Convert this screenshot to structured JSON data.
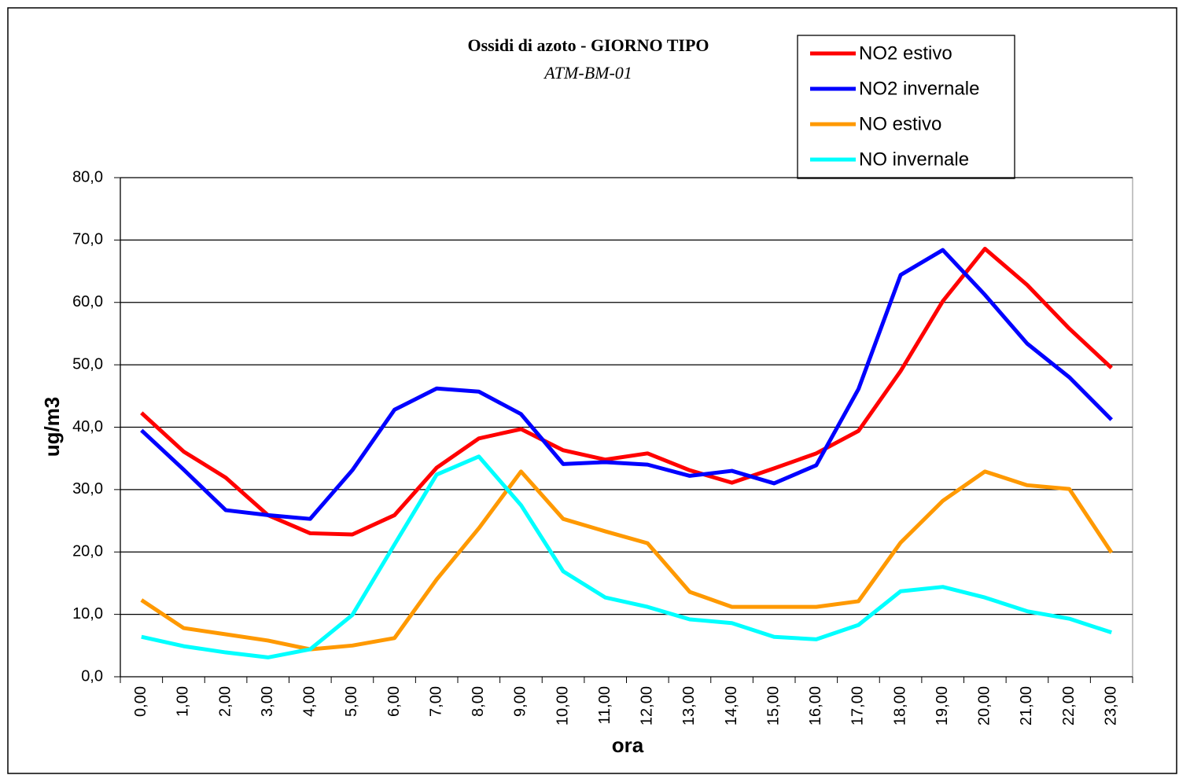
{
  "chart_data": {
    "type": "line",
    "title": "Ossidi di azoto - GIORNO TIPO",
    "subtitle": "ATM-BM-01",
    "x_label": "ora",
    "y_label": "ug/m3",
    "categories": [
      "0,00",
      "1,00",
      "2,00",
      "3,00",
      "4,00",
      "5,00",
      "6,00",
      "7,00",
      "8,00",
      "9,00",
      "10,00",
      "11,00",
      "12,00",
      "13,00",
      "14,00",
      "15,00",
      "16,00",
      "17,00",
      "18,00",
      "19,00",
      "20,00",
      "21,00",
      "22,00",
      "23,00"
    ],
    "series": [
      {
        "name": "NO2 estivo",
        "color": "#ff0000",
        "values": [
          42.3,
          36.1,
          31.9,
          25.9,
          23.0,
          22.8,
          25.9,
          33.5,
          38.2,
          39.7,
          36.3,
          34.8,
          35.8,
          33.1,
          31.1,
          33.4,
          35.8,
          39.4,
          49.0,
          60.2,
          68.6,
          62.8,
          55.8,
          49.5
        ]
      },
      {
        "name": "NO2 invernale",
        "color": "#0000ff",
        "values": [
          39.5,
          33.2,
          26.7,
          25.9,
          25.3,
          33.1,
          42.8,
          46.2,
          45.7,
          42.1,
          34.1,
          34.4,
          34.0,
          32.2,
          33.0,
          31.0,
          33.9,
          46.1,
          64.4,
          68.4,
          61.2,
          53.4,
          48.0,
          41.2
        ]
      },
      {
        "name": "NO estivo",
        "color": "#ff9900",
        "values": [
          12.3,
          7.8,
          6.8,
          5.8,
          4.4,
          5.0,
          6.2,
          15.6,
          23.8,
          32.9,
          25.3,
          23.3,
          21.4,
          13.6,
          11.2,
          11.2,
          11.2,
          12.1,
          21.5,
          28.2,
          32.9,
          30.7,
          30.1,
          19.9
        ]
      },
      {
        "name": "NO invernale",
        "color": "#00ffff",
        "values": [
          6.4,
          4.9,
          3.9,
          3.1,
          4.4,
          9.9,
          21.2,
          32.4,
          35.3,
          27.5,
          16.9,
          12.7,
          11.2,
          9.2,
          8.6,
          6.4,
          6.0,
          8.3,
          13.7,
          14.4,
          12.7,
          10.5,
          9.3,
          7.1
        ]
      }
    ],
    "ylim": [
      0,
      80
    ],
    "yticks": [
      {
        "value": 0,
        "label": "0,0"
      },
      {
        "value": 10,
        "label": "10,0"
      },
      {
        "value": 20,
        "label": "20,0"
      },
      {
        "value": 30,
        "label": "30,0"
      },
      {
        "value": 40,
        "label": "40,0"
      },
      {
        "value": 50,
        "label": "50,0"
      },
      {
        "value": 60,
        "label": "60,0"
      },
      {
        "value": 70,
        "label": "70,0"
      },
      {
        "value": 80,
        "label": "80,0"
      }
    ],
    "grid": true,
    "legend": "top-right"
  }
}
